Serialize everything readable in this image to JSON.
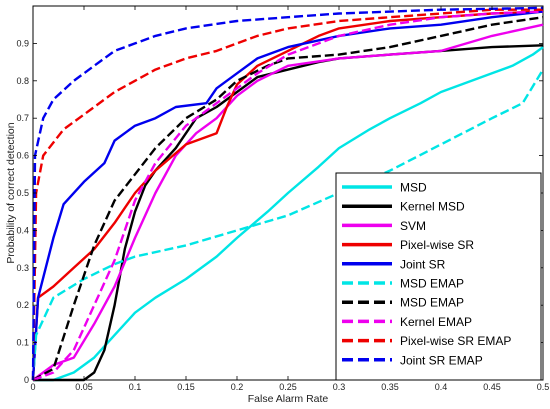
{
  "chart_data": {
    "type": "line",
    "title": "",
    "xlabel": "False Alarm Rate",
    "ylabel": "Probability of correct detection",
    "xlim": [
      0,
      0.5
    ],
    "ylim": [
      0,
      1
    ],
    "x_ticks": [
      "0",
      "0.05",
      "0.1",
      "0.15",
      "0.2",
      "0.25",
      "0.3",
      "0.35",
      "0.4",
      "0.45",
      "0.5"
    ],
    "y_ticks": [
      "0",
      "0.1",
      "0.2",
      "0.3",
      "0.4",
      "0.5",
      "0.6",
      "0.7",
      "0.8",
      "0.9"
    ],
    "grid": false,
    "legend_position": "bottom-right",
    "series": [
      {
        "name": "MSD",
        "color": "#00e5e5",
        "style": "solid",
        "points": [
          [
            0,
            0
          ],
          [
            0.02,
            0
          ],
          [
            0.04,
            0.02
          ],
          [
            0.06,
            0.06
          ],
          [
            0.08,
            0.12
          ],
          [
            0.1,
            0.18
          ],
          [
            0.12,
            0.22
          ],
          [
            0.15,
            0.27
          ],
          [
            0.18,
            0.33
          ],
          [
            0.2,
            0.38
          ],
          [
            0.23,
            0.45
          ],
          [
            0.25,
            0.5
          ],
          [
            0.28,
            0.57
          ],
          [
            0.3,
            0.62
          ],
          [
            0.33,
            0.67
          ],
          [
            0.35,
            0.7
          ],
          [
            0.38,
            0.74
          ],
          [
            0.4,
            0.77
          ],
          [
            0.43,
            0.8
          ],
          [
            0.45,
            0.82
          ],
          [
            0.47,
            0.84
          ],
          [
            0.49,
            0.87
          ],
          [
            0.5,
            0.89
          ]
        ]
      },
      {
        "name": "Kernel MSD",
        "color": "#000000",
        "style": "solid",
        "points": [
          [
            0,
            0
          ],
          [
            0.05,
            0
          ],
          [
            0.06,
            0.02
          ],
          [
            0.07,
            0.08
          ],
          [
            0.08,
            0.2
          ],
          [
            0.09,
            0.35
          ],
          [
            0.1,
            0.45
          ],
          [
            0.11,
            0.52
          ],
          [
            0.12,
            0.56
          ],
          [
            0.14,
            0.62
          ],
          [
            0.16,
            0.7
          ],
          [
            0.18,
            0.73
          ],
          [
            0.2,
            0.77
          ],
          [
            0.22,
            0.81
          ],
          [
            0.25,
            0.83
          ],
          [
            0.28,
            0.85
          ],
          [
            0.3,
            0.86
          ],
          [
            0.35,
            0.87
          ],
          [
            0.4,
            0.88
          ],
          [
            0.45,
            0.89
          ],
          [
            0.5,
            0.895
          ]
        ]
      },
      {
        "name": "SVM",
        "color": "#ee00ee",
        "style": "solid",
        "points": [
          [
            0,
            0
          ],
          [
            0.02,
            0.04
          ],
          [
            0.04,
            0.06
          ],
          [
            0.06,
            0.15
          ],
          [
            0.08,
            0.25
          ],
          [
            0.1,
            0.38
          ],
          [
            0.12,
            0.5
          ],
          [
            0.14,
            0.6
          ],
          [
            0.16,
            0.66
          ],
          [
            0.18,
            0.7
          ],
          [
            0.2,
            0.76
          ],
          [
            0.22,
            0.8
          ],
          [
            0.25,
            0.84
          ],
          [
            0.3,
            0.86
          ],
          [
            0.35,
            0.87
          ],
          [
            0.4,
            0.88
          ],
          [
            0.45,
            0.92
          ],
          [
            0.5,
            0.95
          ]
        ]
      },
      {
        "name": "Pixel-wise SR",
        "color": "#ee0000",
        "style": "solid",
        "points": [
          [
            0,
            0
          ],
          [
            0.005,
            0.22
          ],
          [
            0.02,
            0.25
          ],
          [
            0.04,
            0.3
          ],
          [
            0.06,
            0.35
          ],
          [
            0.08,
            0.42
          ],
          [
            0.1,
            0.5
          ],
          [
            0.12,
            0.56
          ],
          [
            0.15,
            0.63
          ],
          [
            0.18,
            0.66
          ],
          [
            0.19,
            0.73
          ],
          [
            0.2,
            0.79
          ],
          [
            0.22,
            0.84
          ],
          [
            0.25,
            0.88
          ],
          [
            0.28,
            0.92
          ],
          [
            0.3,
            0.94
          ],
          [
            0.35,
            0.96
          ],
          [
            0.4,
            0.97
          ],
          [
            0.45,
            0.98
          ],
          [
            0.5,
            0.985
          ]
        ]
      },
      {
        "name": "Joint SR",
        "color": "#0000ee",
        "style": "solid",
        "points": [
          [
            0,
            0
          ],
          [
            0.005,
            0.22
          ],
          [
            0.02,
            0.38
          ],
          [
            0.03,
            0.47
          ],
          [
            0.05,
            0.53
          ],
          [
            0.07,
            0.58
          ],
          [
            0.08,
            0.64
          ],
          [
            0.1,
            0.68
          ],
          [
            0.12,
            0.7
          ],
          [
            0.14,
            0.73
          ],
          [
            0.17,
            0.74
          ],
          [
            0.18,
            0.78
          ],
          [
            0.2,
            0.82
          ],
          [
            0.22,
            0.86
          ],
          [
            0.25,
            0.89
          ],
          [
            0.3,
            0.92
          ],
          [
            0.35,
            0.94
          ],
          [
            0.4,
            0.95
          ],
          [
            0.45,
            0.97
          ],
          [
            0.5,
            0.985
          ]
        ]
      },
      {
        "name": "MSD EMAP",
        "color": "#00e5e5",
        "style": "dashed",
        "points": [
          [
            0,
            0
          ],
          [
            0.003,
            0.12
          ],
          [
            0.02,
            0.22
          ],
          [
            0.05,
            0.27
          ],
          [
            0.08,
            0.31
          ],
          [
            0.1,
            0.33
          ],
          [
            0.15,
            0.36
          ],
          [
            0.2,
            0.4
          ],
          [
            0.25,
            0.44
          ],
          [
            0.3,
            0.5
          ],
          [
            0.35,
            0.56
          ],
          [
            0.4,
            0.63
          ],
          [
            0.45,
            0.7
          ],
          [
            0.48,
            0.74
          ],
          [
            0.5,
            0.83
          ]
        ]
      },
      {
        "name": "MSD EMAP",
        "color": "#000000",
        "style": "dashed",
        "points": [
          [
            0,
            0
          ],
          [
            0.02,
            0.03
          ],
          [
            0.04,
            0.2
          ],
          [
            0.06,
            0.36
          ],
          [
            0.08,
            0.48
          ],
          [
            0.1,
            0.55
          ],
          [
            0.12,
            0.62
          ],
          [
            0.15,
            0.7
          ],
          [
            0.18,
            0.75
          ],
          [
            0.2,
            0.8
          ],
          [
            0.23,
            0.84
          ],
          [
            0.25,
            0.86
          ],
          [
            0.3,
            0.87
          ],
          [
            0.35,
            0.89
          ],
          [
            0.4,
            0.92
          ],
          [
            0.45,
            0.95
          ],
          [
            0.5,
            0.97
          ]
        ]
      },
      {
        "name": "Kernel EMAP",
        "color": "#ee00ee",
        "style": "dashed",
        "points": [
          [
            0,
            0
          ],
          [
            0.02,
            0.02
          ],
          [
            0.04,
            0.08
          ],
          [
            0.06,
            0.2
          ],
          [
            0.08,
            0.32
          ],
          [
            0.1,
            0.48
          ],
          [
            0.12,
            0.58
          ],
          [
            0.15,
            0.68
          ],
          [
            0.18,
            0.74
          ],
          [
            0.2,
            0.78
          ],
          [
            0.22,
            0.82
          ],
          [
            0.25,
            0.87
          ],
          [
            0.3,
            0.92
          ],
          [
            0.35,
            0.95
          ],
          [
            0.4,
            0.97
          ],
          [
            0.45,
            0.98
          ],
          [
            0.5,
            0.985
          ]
        ]
      },
      {
        "name": "Pixel-wise SR EMAP",
        "color": "#ee0000",
        "style": "dashed",
        "points": [
          [
            0,
            0
          ],
          [
            0.003,
            0.5
          ],
          [
            0.01,
            0.6
          ],
          [
            0.03,
            0.67
          ],
          [
            0.05,
            0.71
          ],
          [
            0.08,
            0.77
          ],
          [
            0.1,
            0.8
          ],
          [
            0.12,
            0.83
          ],
          [
            0.15,
            0.86
          ],
          [
            0.18,
            0.88
          ],
          [
            0.2,
            0.9
          ],
          [
            0.22,
            0.92
          ],
          [
            0.25,
            0.94
          ],
          [
            0.3,
            0.96
          ],
          [
            0.35,
            0.97
          ],
          [
            0.4,
            0.98
          ],
          [
            0.45,
            0.99
          ],
          [
            0.5,
            0.99
          ]
        ]
      },
      {
        "name": "Joint SR EMAP",
        "color": "#0000ee",
        "style": "dashed",
        "points": [
          [
            0,
            0
          ],
          [
            0.002,
            0.6
          ],
          [
            0.01,
            0.7
          ],
          [
            0.02,
            0.75
          ],
          [
            0.04,
            0.8
          ],
          [
            0.06,
            0.84
          ],
          [
            0.08,
            0.88
          ],
          [
            0.1,
            0.9
          ],
          [
            0.12,
            0.92
          ],
          [
            0.15,
            0.94
          ],
          [
            0.2,
            0.96
          ],
          [
            0.25,
            0.97
          ],
          [
            0.3,
            0.98
          ],
          [
            0.4,
            0.99
          ],
          [
            0.5,
            0.995
          ]
        ]
      }
    ]
  }
}
